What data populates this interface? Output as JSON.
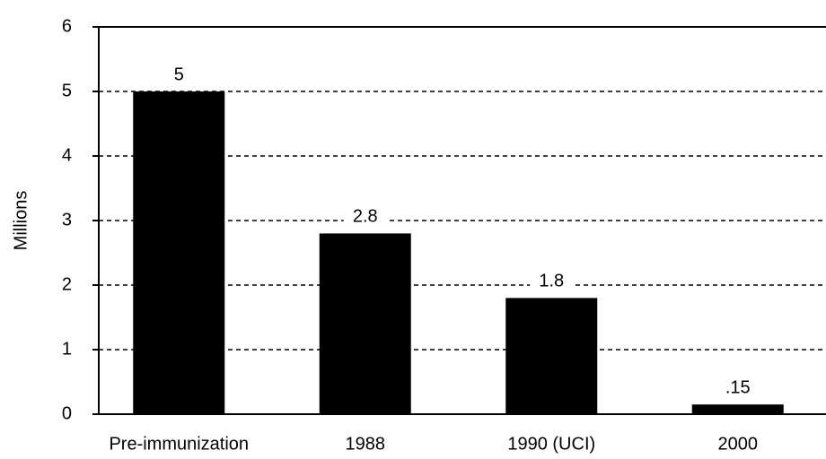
{
  "chart_data": {
    "type": "bar",
    "y_label": "Millions",
    "categories": [
      "Pre-immunization",
      "1988",
      "1990 (UCI)",
      "2000"
    ],
    "values": [
      5,
      2.8,
      1.8,
      0.15
    ],
    "value_labels": [
      "5",
      "2.8",
      "1.8",
      ".15"
    ],
    "color": "#000000",
    "ylim": [
      0,
      6
    ],
    "yticks": [
      0,
      1,
      2,
      3,
      4,
      5,
      6
    ],
    "grid": true
  }
}
